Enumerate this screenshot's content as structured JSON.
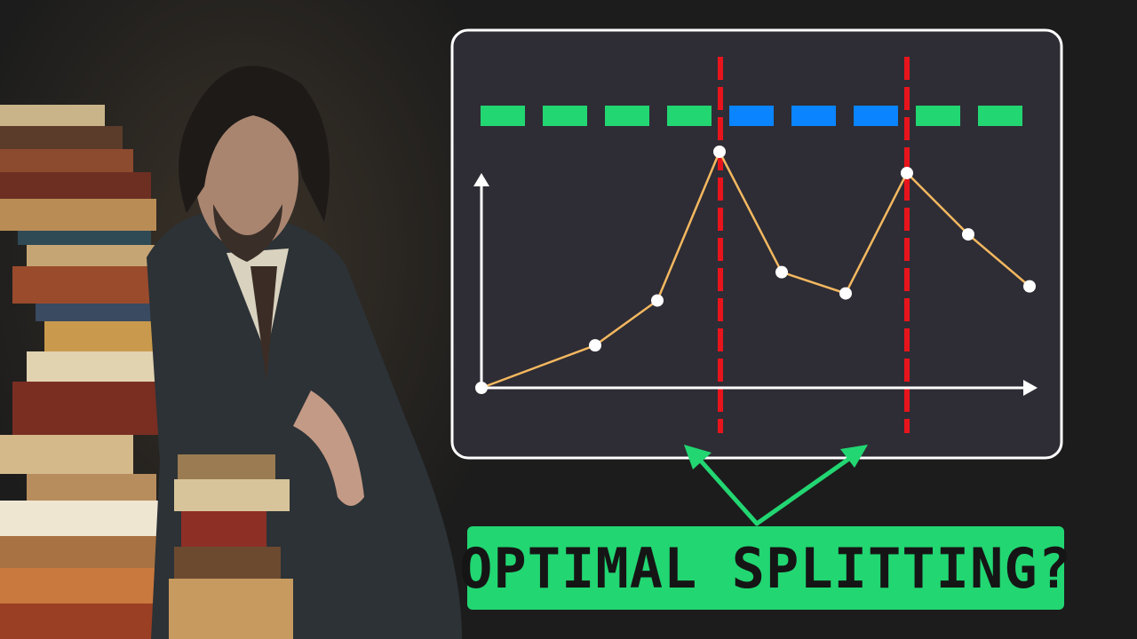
{
  "caption": "OPTIMAL SPLITTING?",
  "colors": {
    "background": "#1c1c1c",
    "panel_fill": "#2e2d35",
    "panel_border": "#ffffff",
    "accent_green": "#22d672",
    "accent_blue": "#0a84ff",
    "split_line_red": "#e8141c",
    "series_line": "#f4b860",
    "point": "#ffffff",
    "caption_text": "#151515"
  },
  "icons": {
    "photo": "man-in-suit-with-stacked-books",
    "arrows": "green-arrows-pointing-to-split-lines"
  },
  "diagram": {
    "segment_strip": [
      "green",
      "green",
      "green",
      "green",
      "blue",
      "blue",
      "blue",
      "green",
      "green"
    ],
    "split_after_segment": [
      4,
      7
    ],
    "series": [
      0,
      18,
      37,
      100,
      49,
      40,
      91,
      65,
      43
    ]
  }
}
